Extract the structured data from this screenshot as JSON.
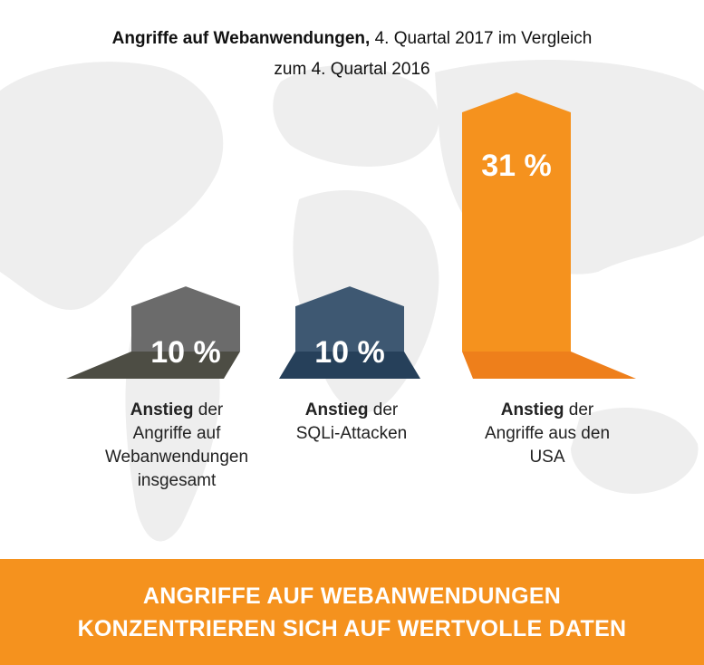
{
  "title": {
    "bold": "Angriffe auf Webanwendungen,",
    "line1_rest": " 4. Quartal 2017 im Vergleich",
    "line2": "zum 4. Quartal 2016"
  },
  "colors": {
    "gray": "#6B6B6B",
    "gray_base": "#4D4D44",
    "blue": "#3E5872",
    "blue_base": "#26405A",
    "orange": "#F5921E",
    "orange_base": "#EE7F1B",
    "map": "#EFEFEF"
  },
  "chart_data": {
    "type": "bar",
    "categories": [
      "Anstieg der Angriffe auf Webanwendungen insgesamt",
      "Anstieg der SQLi-Attacken",
      "Anstieg der Angriffe aus den USA"
    ],
    "values": [
      10,
      10,
      31
    ],
    "unit": "%",
    "data_labels": [
      "10 %",
      "10 %",
      "31 %"
    ],
    "ylim": [
      0,
      31
    ]
  },
  "labels": [
    {
      "bold": "Anstieg",
      "rest": " der",
      "line2": "Angriffe auf",
      "line3": "Webanwendungen",
      "line4": "insgesamt"
    },
    {
      "bold": "Anstieg",
      "rest": " der",
      "line2": "SQLi-Attacken"
    },
    {
      "bold": "Anstieg",
      "rest": " der",
      "line2": "Angriffe aus den",
      "line3": "USA"
    }
  ],
  "banner": {
    "line1": "ANGRIFFE AUF WEBANWENDUNGEN",
    "line2": "KONZENTRIEREN SICH AUF WERTVOLLE DATEN"
  }
}
